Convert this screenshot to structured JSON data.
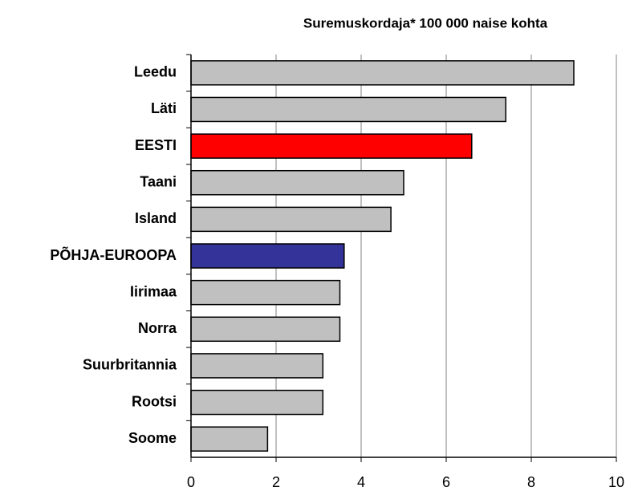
{
  "chart_data": {
    "type": "bar",
    "orientation": "horizontal",
    "title": "Suremuskordaja* 100 000 naise kohta",
    "categories": [
      "Leedu",
      "Läti",
      "EESTI",
      "Taani",
      "Island",
      "PÕHJA-EUROOPA",
      "Iirimaa",
      "Norra",
      "Suurbritannia",
      "Rootsi",
      "Soome"
    ],
    "values": [
      9.0,
      7.4,
      6.6,
      5.0,
      4.7,
      3.6,
      3.5,
      3.5,
      3.1,
      3.1,
      1.8
    ],
    "colors": [
      "#c0c0c0",
      "#c0c0c0",
      "#ff0000",
      "#c0c0c0",
      "#c0c0c0",
      "#333399",
      "#c0c0c0",
      "#c0c0c0",
      "#c0c0c0",
      "#c0c0c0",
      "#c0c0c0"
    ],
    "xlim": [
      0,
      10
    ],
    "xticks": [
      0,
      2,
      4,
      6,
      8,
      10
    ],
    "grid": true
  }
}
